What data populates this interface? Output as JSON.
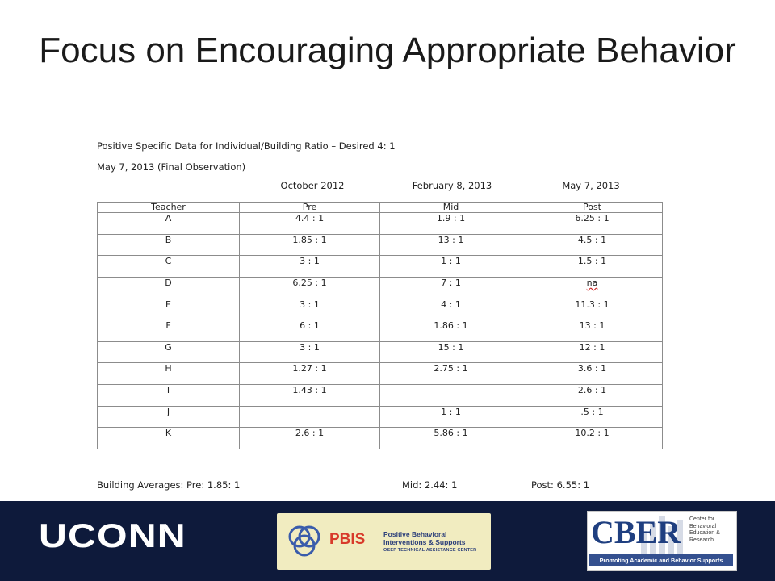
{
  "slide": {
    "title": "Focus on Encouraging Appropriate Behavior"
  },
  "document": {
    "heading": "Positive Specific Data for Individual/Building Ratio – Desired 4: 1",
    "subheading": "May 7, 2013 (Final Observation)",
    "periods": [
      "October 2012",
      "February 8, 2013",
      "May 7, 2013"
    ],
    "table": {
      "columns": [
        "Teacher",
        "Pre",
        "Mid",
        "Post"
      ],
      "rows": [
        [
          "A",
          "4.4 : 1",
          "1.9 : 1",
          "6.25 : 1"
        ],
        [
          "B",
          "1.85 : 1",
          "13 : 1",
          "4.5 : 1"
        ],
        [
          "C",
          "3 : 1",
          "1 : 1",
          "1.5 : 1"
        ],
        [
          "D",
          "6.25 : 1",
          "7 : 1",
          "na"
        ],
        [
          "E",
          "3 : 1",
          "4 : 1",
          "11.3 : 1"
        ],
        [
          "F",
          "6 : 1",
          "1.86 : 1",
          "13 : 1"
        ],
        [
          "G",
          "3 : 1",
          "15 : 1",
          "12 : 1"
        ],
        [
          "H",
          "1.27 : 1",
          "2.75 : 1",
          "3.6 : 1"
        ],
        [
          "I",
          "1.43 : 1",
          "",
          "2.6 : 1"
        ],
        [
          "J",
          "",
          "1 : 1",
          ".5 : 1"
        ],
        [
          "K",
          "2.6 : 1",
          "5.86 : 1",
          "10.2 : 1"
        ]
      ]
    },
    "averages": {
      "label_pre": "Building Averages: Pre: 1.85: 1",
      "mid": "Mid: 2.44: 1",
      "post": "Post: 6.55: 1"
    }
  },
  "footer": {
    "bar_color": "#0e1a3b",
    "uconn_logo": "UCONN",
    "pbis_logo": {
      "name": "PBIS",
      "tagline_1": "Positive Behavioral",
      "tagline_2": "Interventions & Supports",
      "sub": "OSEP TECHNICAL ASSISTANCE CENTER"
    },
    "cber_logo": {
      "name": "CBER",
      "text_1": "Center for",
      "text_2": "Behavioral",
      "text_3": "Education &",
      "text_4": "Research",
      "strip": "Promoting Academic and Behavior Supports"
    }
  }
}
